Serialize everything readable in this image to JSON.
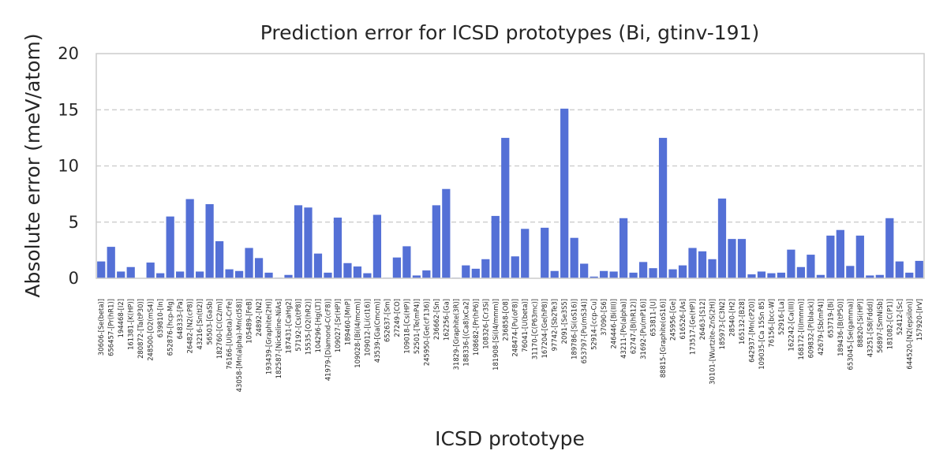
{
  "chart_data": {
    "type": "bar",
    "title": "Prediction error for ICSD prototypes (Bi, gtinv-191)",
    "xlabel": "ICSD prototype",
    "ylabel": "Absolute error (meV/atom)",
    "ylim": [
      0,
      20
    ],
    "yticks": [
      0,
      5,
      10,
      15,
      20
    ],
    "grid": "y-dashed",
    "bar_color": "#5470d6",
    "categories": [
      "30606-[Se(beta)]",
      "656457-[Pr(hR1)]",
      "194468-[I2]",
      "161381-[K(HP)]",
      "280872-[Ta(tP30)]",
      "248500-[O2(mS4)]",
      "639810-[In]",
      "652876-[hcp-Mg]",
      "648333-[Pa]",
      "26482-[N2(cP8)]",
      "43216-[Sn(tI2)]",
      "56503-[GaSb]",
      "182760-[C(C2/m)]",
      "76166-[U(beta)-CrFe]",
      "43058-[Mn(alpha)-Mn(cI58)]",
      "105489-[FeB]",
      "24892-[N2]",
      "193439-[Graphite(2H)]",
      "182587-[Nickeline-NiAs]",
      "187431-[CaHg2]",
      "57192-[Cs(tP8)]",
      "15535-[O2(hR2)]",
      "104296-[Hg(LT)]",
      "41979-[Diamond-C(cF8)]",
      "109027-[Sr(HP)]",
      "189460-[MnP]",
      "109028-[Bi(I4/mcm)]",
      "109012-[Li(cI16)]",
      "43539-[Ga(Cmcm)]",
      "652637-[Sm]",
      "27249-[CO]",
      "109018-[Cs(HP)]",
      "52501-[Te(mP4)]",
      "245950-[Ge(cF136)]",
      "236662-[Sn]",
      "162256-[Ga]",
      "31829-[Graphite(3R)]",
      "188336-[(Ca8)xCa2]",
      "108682-[Pr(hP6)]",
      "108326-[Cr3Si]",
      "181908-[Si(I4/mmm)]",
      "236858-[O8]",
      "248474-[Pu(oF8)]",
      "76041-[U(beta)]",
      "31170-[C(P63mc)]",
      "167204-[Ge(hP8)]",
      "97742-[Sb2Te3]",
      "2091-[Se3S5]",
      "189786-[Si(oS16)]",
      "653797-[Pu(mS34)]",
      "52914-[ccp-Cu]",
      "37090-[S6]",
      "246446-[Bi(III)]",
      "43211-[Po(alpha)]",
      "62747-[B(hR12)]",
      "31692-[Pu(mP16)]",
      "653811-[U]",
      "88815-[Graphite(oS16)]",
      "245956-[Ge]",
      "616526-[As]",
      "173517-[Ge(HP)]",
      "26463-[S12]",
      "30101-[Wurtzite-ZnS(2H)]",
      "185973-[C3N2]",
      "28540-[H2]",
      "165132-[B28]",
      "642937-[Mn(cP20)]",
      "109035-[Ca 15Sn 85]",
      "76156-[bcc-W]",
      "52916-[La]",
      "162242-[Ca(III)]",
      "168172-[I(Immm)]",
      "609832-[P(black)]",
      "42679-[Sb(mP4)]",
      "653719-[Bi]",
      "189436-[B(tP50)]",
      "653045-[Se(gamma)]",
      "88820-[Si(HP)]",
      "43251-[S8(Fddd)]",
      "56897-[SmNiSb]",
      "181082-[C(P1)]",
      "52412-[Sc]",
      "644520-[N2(epsilon)]",
      "157920-[IrV]"
    ],
    "values": [
      1.5,
      2.8,
      0.6,
      1.0,
      0.0,
      1.4,
      0.45,
      5.5,
      0.6,
      7.05,
      0.6,
      6.6,
      3.3,
      0.8,
      0.65,
      2.7,
      1.8,
      0.5,
      0.05,
      0.3,
      6.5,
      6.3,
      2.2,
      0.5,
      5.4,
      1.35,
      1.05,
      0.45,
      5.65,
      0.05,
      1.85,
      2.85,
      0.25,
      0.7,
      6.5,
      7.95,
      0.05,
      1.15,
      0.85,
      1.7,
      5.55,
      12.5,
      1.95,
      4.4,
      0.0,
      4.5,
      0.65,
      15.1,
      3.6,
      1.3,
      0.15,
      0.65,
      0.6,
      5.35,
      0.5,
      1.45,
      0.9,
      12.5,
      0.8,
      1.15,
      2.7,
      2.4,
      1.7,
      7.1,
      3.5,
      3.5,
      0.35,
      0.6,
      0.45,
      0.5,
      2.55,
      1.0,
      2.1,
      0.3,
      3.8,
      4.3,
      1.1,
      3.8,
      0.25,
      0.3,
      5.35,
      1.5,
      0.5,
      1.55
    ]
  }
}
